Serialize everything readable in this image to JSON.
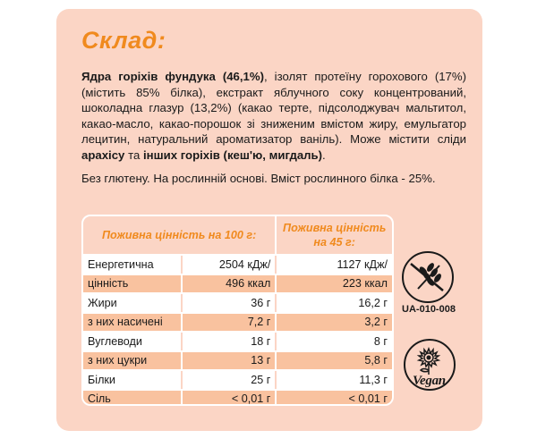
{
  "title": "Склад:",
  "ingredients": {
    "part1_bold": "Ядра горіхів фундука (46,1%)",
    "part2": ", ізолят протеїну горохового (17%) (містить 85% білка), екстракт яблучного соку концентрований, шоколадна глазур (13,2%) (какао терте, підсолоджувач мальтитол, какао-масло, какао-порошок зі зниженим вмістом жиру, емульгатор лецитин, натуральний ароматизатор ваніль). Може містити сліди ",
    "part3_bold": "арахісу",
    "part4": " та ",
    "part5_bold": "інших горіхів (кеш'ю, мигдаль)",
    "part6": "."
  },
  "notes": "Без глютену. На рослинній основі. Вміст рослинного білка - 25%.",
  "table": {
    "header_per100": "Поживна цінність на 100 г:",
    "header_per45": "Поживна цінність на 45 г:",
    "rows": [
      {
        "label": "Енергетична",
        "v100": "2504 кДж/",
        "v45": "1127 кДж/"
      },
      {
        "label": "цінність",
        "v100": "496 ккал",
        "v45": "223 ккал"
      },
      {
        "label": "Жири",
        "v100": "36 г",
        "v45": "16,2 г"
      },
      {
        "label": "з них насичені",
        "v100": "7,2 г",
        "v45": "3,2 г"
      },
      {
        "label": "Вуглеводи",
        "v100": "18 г",
        "v45": "8 г"
      },
      {
        "label": "з них цукри",
        "v100": "13 г",
        "v45": "5,8 г"
      },
      {
        "label": "Білки",
        "v100": "25 г",
        "v45": "11,3 г"
      },
      {
        "label": "Сіль",
        "v100": "< 0,01 г",
        "v45": "< 0,01 г"
      }
    ]
  },
  "badges": {
    "gluten_free_icon": "crossed-grain-icon",
    "gluten_code": "UA-010-008",
    "vegan_icon": "vegan-sunflower-icon",
    "vegan_label": "Vegan"
  },
  "colors": {
    "card_bg": "#fbd5c5",
    "accent_orange": "#f08a1e",
    "row_alt": "#f9c29f"
  }
}
